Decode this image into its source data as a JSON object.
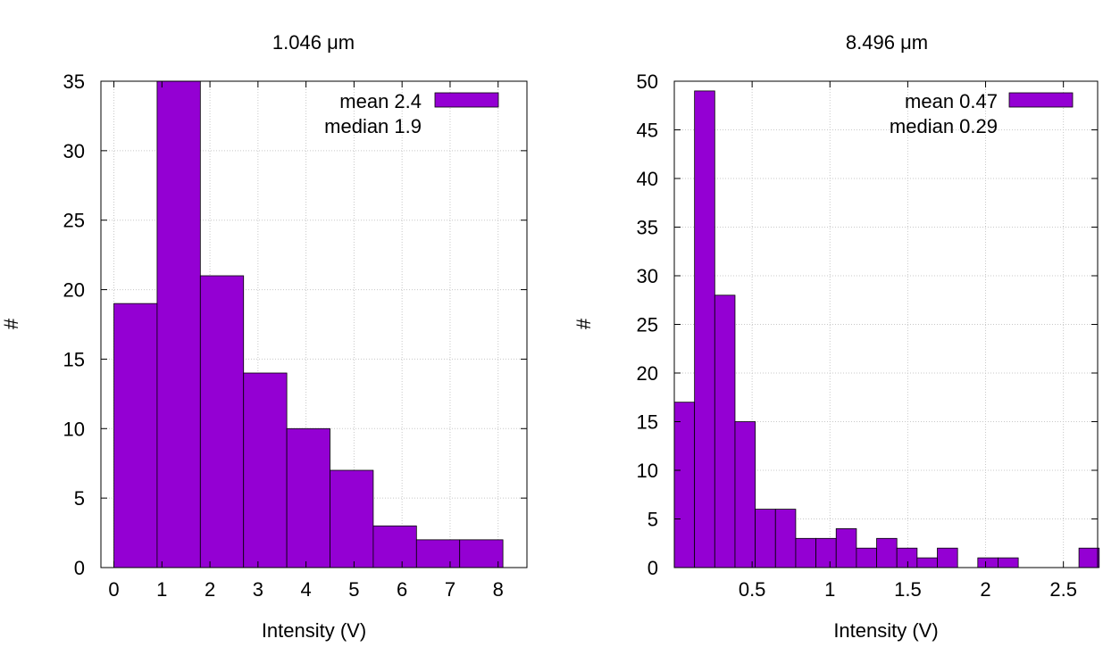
{
  "chart_data": [
    {
      "type": "bar",
      "title": "1.046  μm",
      "xlabel": "Intensity (V)",
      "ylabel": "#",
      "xlim": [
        -0.27,
        8.6
      ],
      "ylim": [
        0,
        35
      ],
      "xticks": [
        "0",
        "1",
        "2",
        "3",
        "4",
        "5",
        "6",
        "7",
        "8"
      ],
      "yticks": [
        "0",
        "5",
        "10",
        "15",
        "20",
        "25",
        "30",
        "35"
      ],
      "bin_width": 0.9,
      "x": [
        0.0,
        0.9,
        1.8,
        2.7,
        3.6,
        4.5,
        5.4,
        6.3,
        7.2
      ],
      "values": [
        19,
        35,
        21,
        14,
        10,
        7,
        3,
        2,
        2
      ],
      "legend": {
        "position": "top-right",
        "entries": [
          "mean 2.4",
          "median 1.9"
        ]
      },
      "bar_color": "#9400d3",
      "grid": true
    },
    {
      "type": "bar",
      "title": "8.496  μm",
      "xlabel": "Intensity (V)",
      "ylabel": "#",
      "xlim": [
        0.0,
        2.72
      ],
      "ylim": [
        0,
        50
      ],
      "xticks": [
        "0.5",
        "1",
        "1.5",
        "2",
        "2.5"
      ],
      "yticks": [
        "0",
        "5",
        "10",
        "15",
        "20",
        "25",
        "30",
        "35",
        "40",
        "45",
        "50"
      ],
      "bin_width": 0.13,
      "x": [
        0.0,
        0.13,
        0.26,
        0.39,
        0.52,
        0.65,
        0.78,
        0.91,
        1.04,
        1.17,
        1.3,
        1.43,
        1.56,
        1.69,
        1.82,
        1.95,
        2.08,
        2.21,
        2.34,
        2.47,
        2.6
      ],
      "values": [
        17,
        49,
        28,
        15,
        6,
        6,
        3,
        3,
        4,
        2,
        3,
        2,
        1,
        2,
        0,
        1,
        1,
        0,
        0,
        0,
        2
      ],
      "legend": {
        "position": "top-right",
        "entries": [
          "mean 0.47",
          "median 0.29"
        ]
      },
      "bar_color": "#9400d3",
      "grid": true
    }
  ]
}
